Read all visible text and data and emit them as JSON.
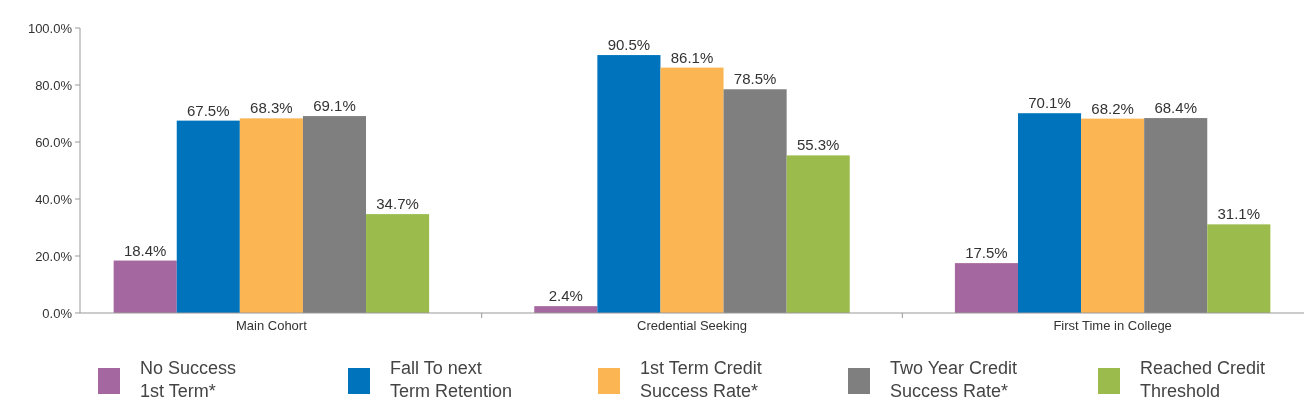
{
  "chart_data": {
    "type": "bar",
    "categories": [
      "Main Cohort",
      "Credential Seeking",
      "First Time in College"
    ],
    "series": [
      {
        "name": "No Success 1st Term*",
        "color": "#a5679f",
        "values": [
          18.4,
          2.4,
          17.5
        ],
        "value_labels": [
          "18.4%",
          "2.4%",
          "17.5%"
        ]
      },
      {
        "name": "Fall To next Term Retention",
        "color": "#0073bd",
        "values": [
          67.5,
          90.5,
          70.1
        ],
        "value_labels": [
          "67.5%",
          "90.5%",
          "70.1%"
        ]
      },
      {
        "name": "1st Term Credit Success Rate*",
        "color": "#fbb552",
        "values": [
          68.3,
          86.1,
          68.2
        ],
        "value_labels": [
          "68.3%",
          "86.1%",
          "68.2%"
        ]
      },
      {
        "name": "Two Year Credit Success Rate*",
        "color": "#7f7f7f",
        "values": [
          69.1,
          78.5,
          68.4
        ],
        "value_labels": [
          "69.1%",
          "78.5%",
          "68.4%"
        ]
      },
      {
        "name": "Reached Credit Threshold",
        "color": "#9bbb4c",
        "values": [
          34.7,
          55.3,
          31.1
        ],
        "value_labels": [
          "34.7%",
          "55.3%",
          "31.1%"
        ]
      }
    ],
    "ylim": [
      0,
      100
    ],
    "yticks": [
      {
        "value": 0,
        "label": "0.0%"
      },
      {
        "value": 20,
        "label": "20.0%"
      },
      {
        "value": 40,
        "label": "40.0%"
      },
      {
        "value": 60,
        "label": "60.0%"
      },
      {
        "value": 80,
        "label": "80.0%"
      },
      {
        "value": 100,
        "label": "100.0%"
      }
    ],
    "legend": "bottom"
  }
}
